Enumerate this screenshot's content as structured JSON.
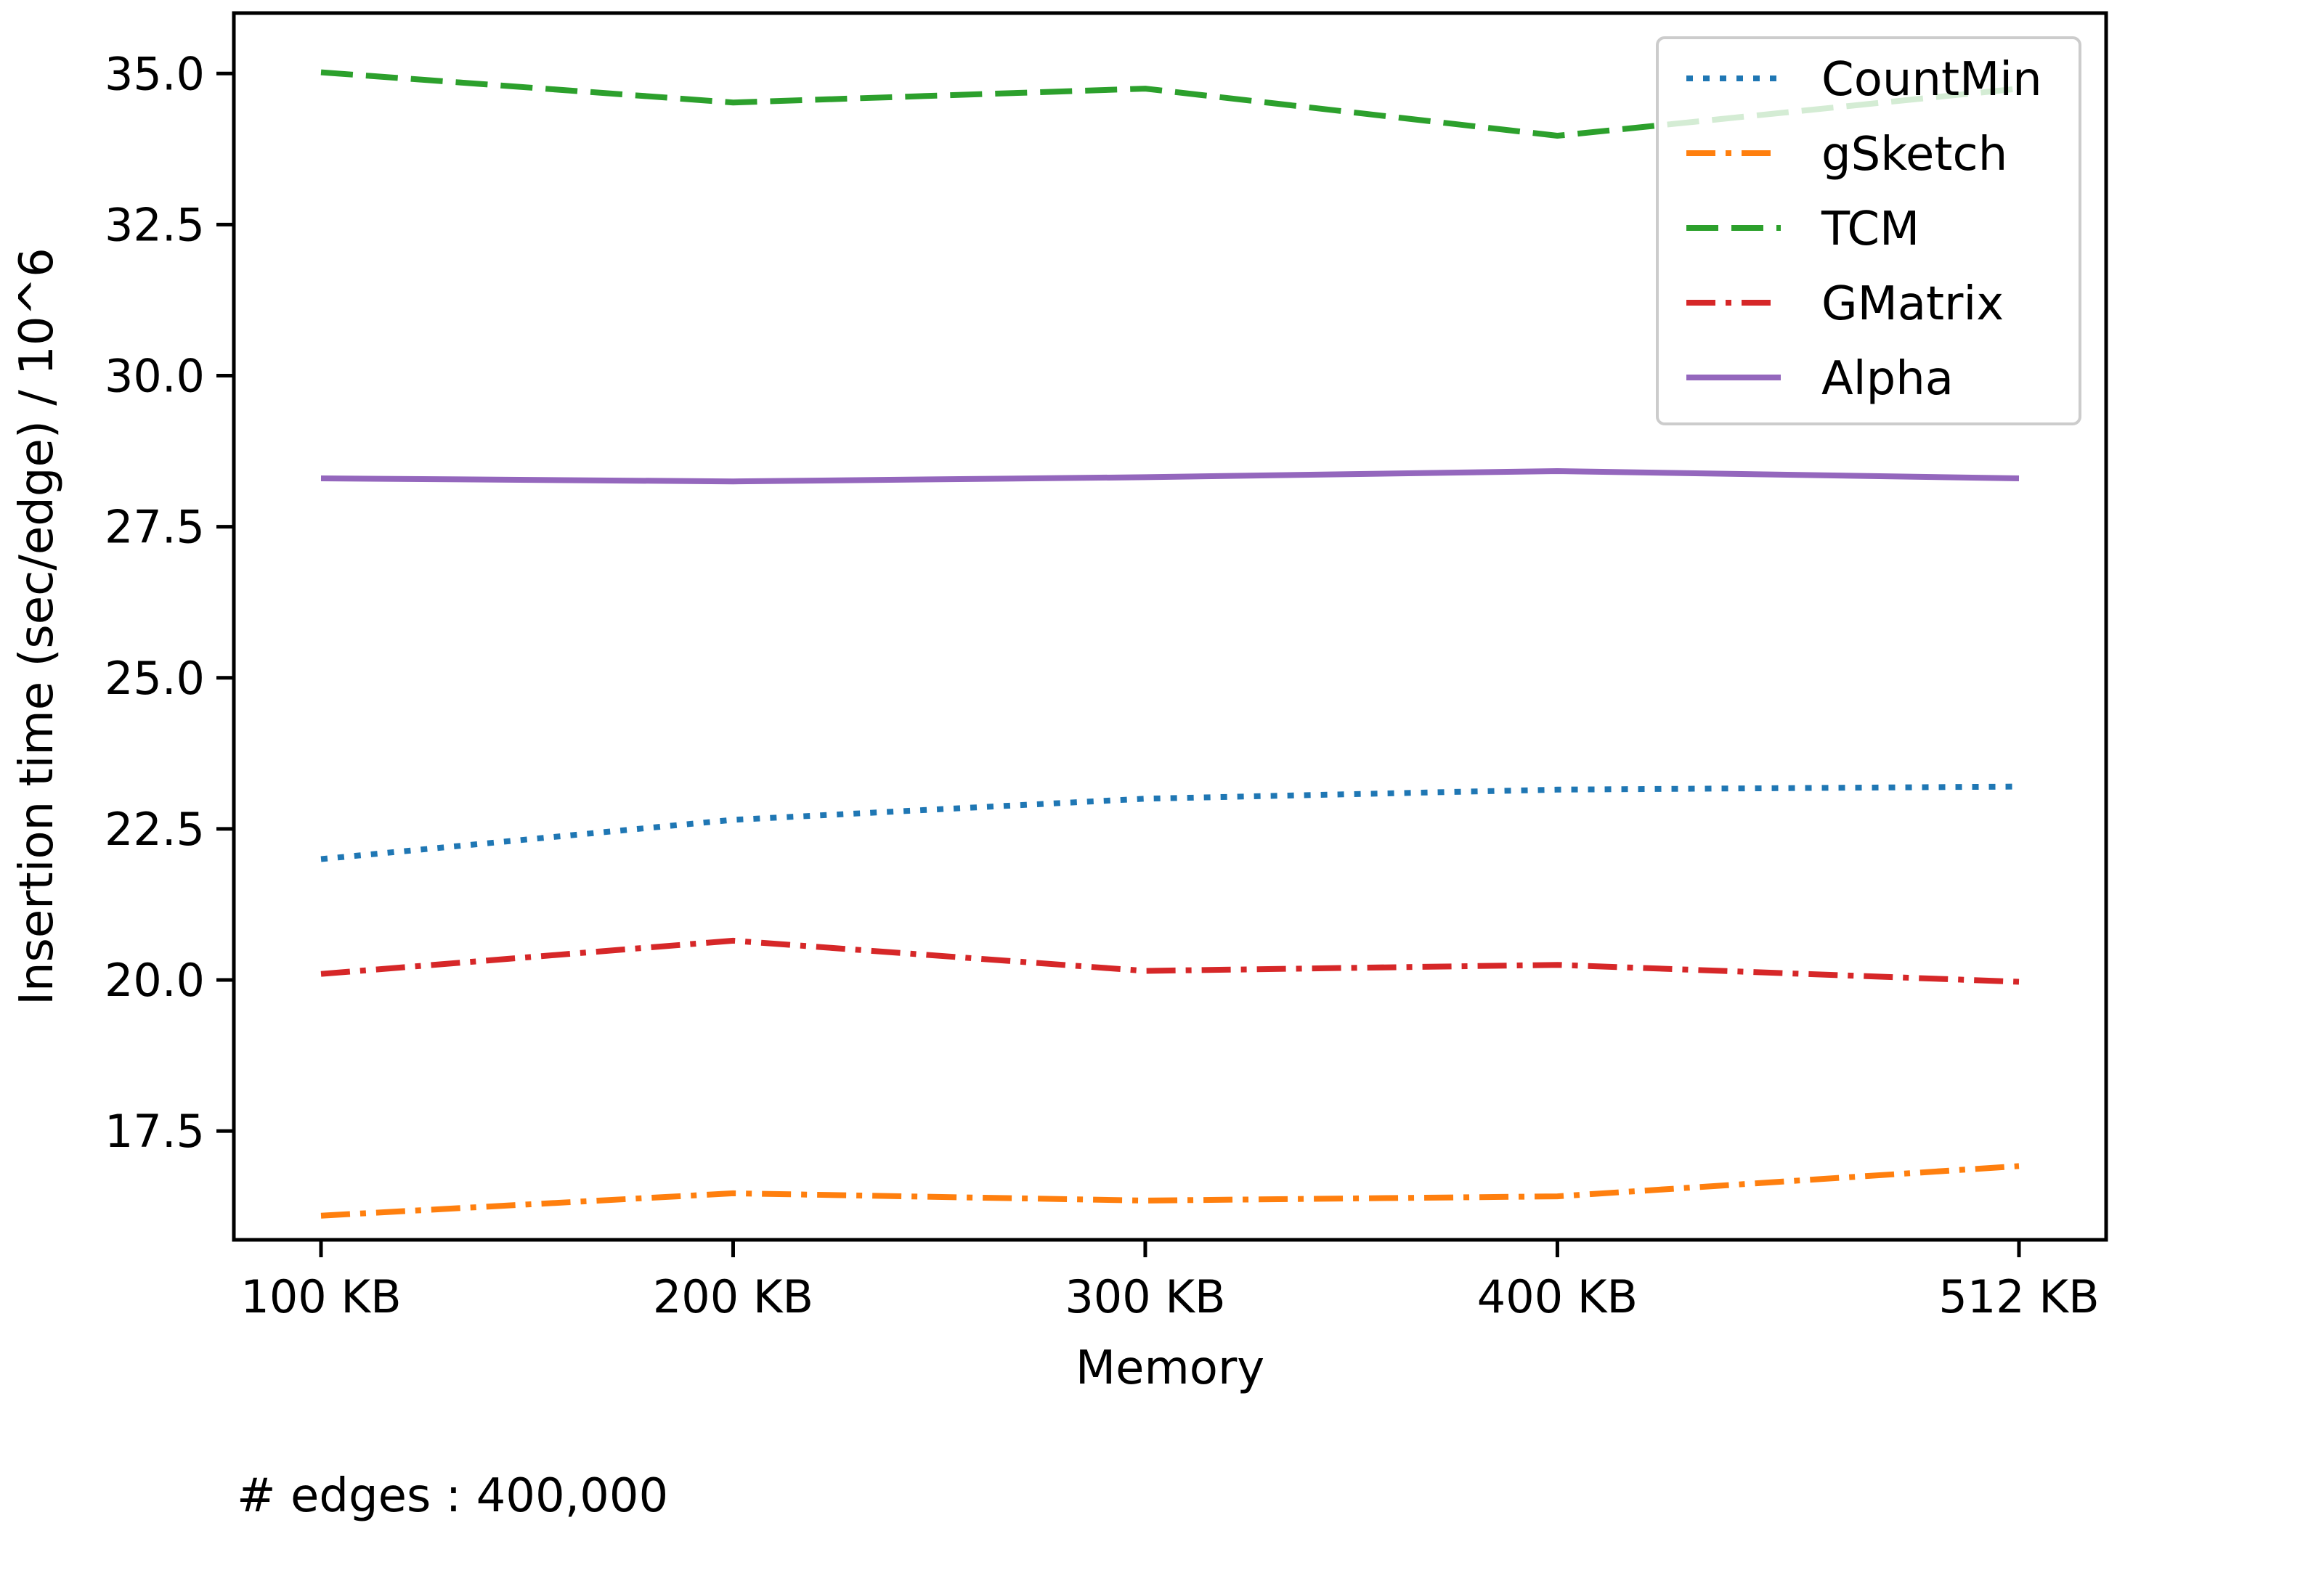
{
  "chart_data": {
    "type": "line",
    "title": "",
    "xlabel": "Memory",
    "ylabel": "Insertion time (sec/edge) / 10^6",
    "categories": [
      "100 KB",
      "200 KB",
      "300 KB",
      "400 KB",
      "512 KB"
    ],
    "x": [
      100,
      200,
      300,
      400,
      512
    ],
    "ylim": [
      15.7,
      36.0
    ],
    "yticks": [
      "17.5",
      "20.0",
      "22.5",
      "25.0",
      "27.5",
      "30.0",
      "32.5",
      "35.0"
    ],
    "grid": false,
    "legend_position": "top-right",
    "series": [
      {
        "name": "CountMin",
        "color": "#1f77b4",
        "dash": "dotted",
        "values": [
          22.0,
          22.65,
          23.0,
          23.15,
          23.2
        ]
      },
      {
        "name": "gSketch",
        "color": "#ff7f0e",
        "dash": "dashdot",
        "values": [
          16.1,
          16.47,
          16.35,
          16.42,
          16.92
        ]
      },
      {
        "name": "TCM",
        "color": "#2ca02c",
        "dash": "dashed",
        "values": [
          35.02,
          34.52,
          34.75,
          33.97,
          34.75
        ]
      },
      {
        "name": "GMatrix",
        "color": "#d62728",
        "dash": "dashdot",
        "values": [
          20.1,
          20.65,
          20.15,
          20.25,
          19.97
        ]
      },
      {
        "name": "Alpha",
        "color": "#9467bd",
        "dash": "solid",
        "values": [
          28.3,
          28.25,
          28.32,
          28.42,
          28.3
        ]
      }
    ],
    "annotation": "# edges : 400,000"
  }
}
